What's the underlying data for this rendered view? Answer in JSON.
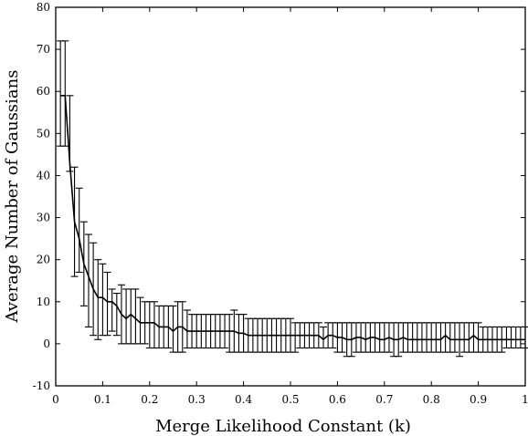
{
  "chart_data": {
    "type": "line",
    "title": "",
    "xlabel": "Merge Likelihood Constant (k)",
    "ylabel": "Average Number of Gaussians",
    "xlim": [
      0,
      1
    ],
    "ylim": [
      -10,
      80
    ],
    "x_ticks": [
      0,
      0.1,
      0.2,
      0.3,
      0.4,
      0.5,
      0.6,
      0.7,
      0.8,
      0.9,
      1
    ],
    "x_tick_labels": [
      "0",
      "0.1",
      "0.2",
      "0.3",
      "0.4",
      "0.5",
      "0.6",
      "0.7",
      "0.8",
      "0.9",
      "1"
    ],
    "y_ticks": [
      -10,
      0,
      10,
      20,
      30,
      40,
      50,
      60,
      70,
      80
    ],
    "y_tick_labels": [
      "-10",
      "0",
      "10",
      "20",
      "30",
      "40",
      "50",
      "60",
      "70",
      "80"
    ],
    "grid": false,
    "legend": "none",
    "color": "#000000",
    "series": [
      {
        "x": [
          0.01,
          0.02,
          0.03,
          0.04,
          0.05,
          0.06,
          0.07,
          0.08,
          0.09,
          0.1,
          0.11,
          0.12,
          0.13,
          0.14,
          0.15,
          0.16,
          0.17,
          0.18,
          0.19,
          0.2,
          0.21,
          0.22,
          0.23,
          0.24,
          0.25,
          0.26,
          0.27,
          0.28,
          0.29,
          0.3,
          0.31,
          0.32,
          0.33,
          0.34,
          0.35,
          0.36,
          0.37,
          0.38,
          0.39,
          0.4,
          0.41,
          0.42,
          0.43,
          0.44,
          0.45,
          0.46,
          0.47,
          0.48,
          0.49,
          0.5,
          0.51,
          0.52,
          0.53,
          0.54,
          0.55,
          0.56,
          0.57,
          0.58,
          0.59,
          0.6,
          0.61,
          0.62,
          0.63,
          0.64,
          0.65,
          0.66,
          0.67,
          0.68,
          0.69,
          0.7,
          0.71,
          0.72,
          0.73,
          0.74,
          0.75,
          0.76,
          0.77,
          0.78,
          0.79,
          0.8,
          0.81,
          0.82,
          0.83,
          0.84,
          0.85,
          0.86,
          0.87,
          0.88,
          0.89,
          0.9,
          0.91,
          0.92,
          0.93,
          0.94,
          0.95,
          0.96,
          0.97,
          0.98,
          0.99,
          1.0
        ],
        "values": [
          59,
          59,
          43,
          29,
          25,
          19,
          16,
          13,
          11,
          11,
          10,
          10,
          9,
          7,
          6,
          7,
          6,
          5,
          5,
          5,
          5,
          4,
          4,
          4,
          3,
          4,
          4,
          3,
          3,
          3,
          3,
          3,
          3,
          3,
          3,
          3,
          3,
          3,
          2.5,
          2.5,
          2,
          2,
          2,
          2,
          2,
          2,
          2,
          2,
          2,
          2,
          2,
          2,
          2,
          2,
          2,
          2,
          1,
          2,
          2,
          1.5,
          1.5,
          1,
          1,
          1.5,
          1.5,
          1,
          1.5,
          1.5,
          1,
          1,
          1.5,
          1,
          1,
          1.5,
          1,
          1,
          1,
          1,
          1,
          1,
          1,
          1,
          2,
          1,
          1,
          1,
          1,
          1,
          2,
          1,
          1,
          1,
          1,
          1,
          1,
          1,
          1,
          1,
          1,
          1
        ],
        "err_low": [
          47,
          47,
          41,
          16,
          17,
          9,
          4,
          2,
          1,
          2,
          2,
          3,
          2,
          0,
          0,
          0,
          0,
          0,
          0,
          -1,
          -1,
          -1,
          -1,
          -1,
          -2,
          -2,
          -2,
          -1,
          -1,
          -1,
          -1,
          -1,
          -1,
          -1,
          -1,
          -1,
          -2,
          -2,
          -2,
          -2,
          -2,
          -2,
          -2,
          -2,
          -2,
          -2,
          -2,
          -2,
          -2,
          -2,
          -2,
          -1,
          -1,
          -1,
          -1,
          -1,
          -1,
          -1,
          -1,
          -2,
          -2,
          -3,
          -3,
          -2,
          -2,
          -2,
          -2,
          -2,
          -2,
          -2,
          -2,
          -3,
          -3,
          -2,
          -2,
          -2,
          -2,
          -2,
          -2,
          -2,
          -2,
          -2,
          -2,
          -2,
          -2,
          -3,
          -2,
          -2,
          -2,
          -2,
          -2,
          -2,
          -2,
          -2,
          -2,
          -1,
          -1,
          -1,
          -1,
          -1
        ],
        "err_high": [
          72,
          72,
          59,
          42,
          37,
          29,
          26,
          24,
          20,
          19,
          17,
          13,
          12,
          14,
          13,
          13,
          13,
          11,
          10,
          10,
          10,
          9,
          9,
          9,
          9,
          10,
          10,
          8,
          7,
          7,
          7,
          7,
          7,
          7,
          7,
          7,
          7,
          8,
          7,
          7,
          6,
          6,
          6,
          6,
          6,
          6,
          6,
          6,
          6,
          6,
          5,
          5,
          5,
          5,
          5,
          5,
          4,
          5,
          5,
          5,
          5,
          5,
          5,
          5,
          5,
          5,
          5,
          5,
          5,
          5,
          5,
          5,
          5,
          5,
          5,
          5,
          5,
          5,
          5,
          5,
          5,
          5,
          5,
          5,
          5,
          5,
          5,
          5,
          5,
          5,
          4,
          4,
          4,
          4,
          4,
          4,
          4,
          4,
          4,
          4
        ]
      }
    ]
  }
}
